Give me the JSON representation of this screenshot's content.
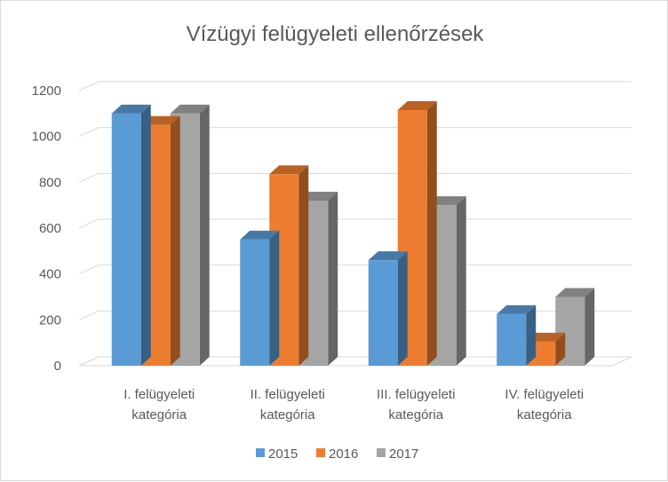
{
  "chart_data": {
    "type": "bar",
    "title": "Vízügyi felügyeleti ellenőrzések",
    "categories": [
      [
        "I. felügyeleti",
        "kategória"
      ],
      [
        "II. felügyeleti",
        "kategória"
      ],
      [
        "III. felügyeleti",
        "kategória"
      ],
      [
        "IV. felügyeleti",
        "kategória"
      ]
    ],
    "series": [
      {
        "name": "2015",
        "color": "#5b9bd5",
        "values": [
          1100,
          550,
          460,
          225
        ]
      },
      {
        "name": "2016",
        "color": "#ed7d31",
        "values": [
          1050,
          835,
          1115,
          105
        ]
      },
      {
        "name": "2017",
        "color": "#a5a5a5",
        "values": [
          1100,
          720,
          700,
          300
        ]
      }
    ],
    "ylim": [
      0,
      1200
    ],
    "yticks": [
      "0",
      "200",
      "400",
      "600",
      "800",
      "1000",
      "1200"
    ],
    "grid": true,
    "style": "3d-clustered-column",
    "legend_position": "bottom"
  }
}
